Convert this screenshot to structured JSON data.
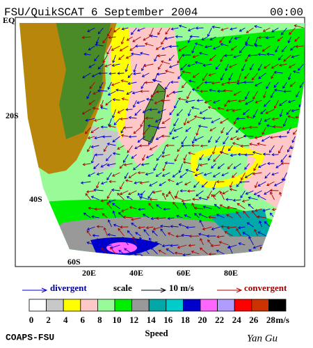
{
  "header": {
    "title": "FSU/QuikSCAT  6 September 2004",
    "time": "00:00"
  },
  "map": {
    "lat_labels": [
      "EQ",
      "20S",
      "40S",
      "60S"
    ],
    "lon_labels": [
      "20E",
      "40E",
      "60E",
      "80E"
    ]
  },
  "legend": {
    "divergent": "divergent",
    "scale": "scale",
    "scale_value": "10 m/s",
    "convergent": "convergent"
  },
  "colorbar": {
    "label": "Speed",
    "unit": "m/s",
    "ticks": [
      0,
      2,
      4,
      6,
      8,
      10,
      12,
      14,
      16,
      18,
      20,
      22,
      24,
      26,
      28
    ],
    "colors": [
      "#ffffff",
      "#c8c8c8",
      "#ffff00",
      "#ffc8c8",
      "#98fb98",
      "#00ee00",
      "#999999",
      "#00a8a8",
      "#00cccc",
      "#0000cc",
      "#ff66ff",
      "#b09cff",
      "#ff0000",
      "#cc3300",
      "#000000"
    ]
  },
  "footer": {
    "left": "COAPS-FSU",
    "right": "Yan Gu"
  }
}
